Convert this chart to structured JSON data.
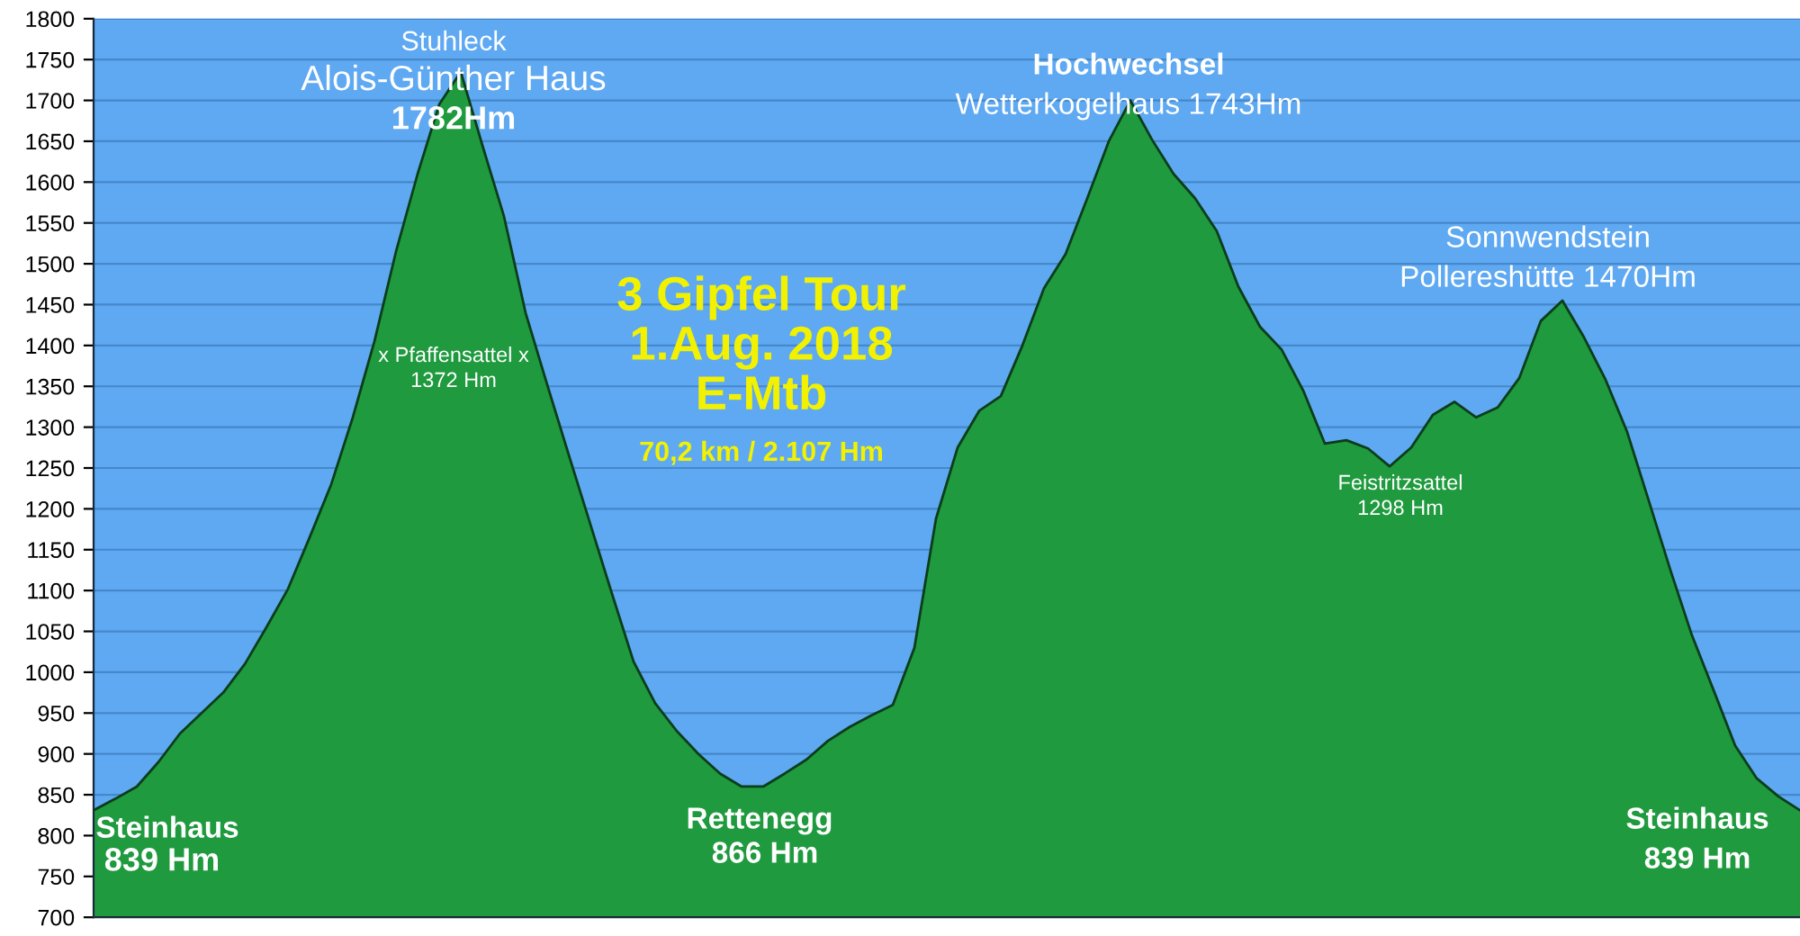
{
  "chart_data": {
    "type": "area",
    "title": "3 Gipfel Tour\n1.Aug. 2018\nE-Mtb",
    "subtitle": "70,2 km / 2.107 Hm",
    "categories": [
      null,
      null,
      null,
      null,
      null,
      null,
      null,
      null,
      null,
      null,
      null,
      null,
      null,
      null,
      null,
      null,
      null,
      null,
      null,
      null,
      null,
      null,
      null,
      null,
      null,
      null,
      null,
      null,
      null,
      null,
      null,
      null,
      null,
      null,
      null,
      null,
      null,
      null,
      null,
      null,
      null,
      null,
      null,
      null,
      null,
      null,
      null,
      null,
      null,
      null,
      null,
      null,
      null,
      null,
      null,
      null,
      null,
      null,
      null,
      null,
      null,
      null,
      null,
      null,
      null,
      null,
      null,
      null,
      null,
      null,
      null,
      null,
      null,
      null,
      null,
      null,
      null,
      null,
      null,
      null
    ],
    "series": [
      {
        "color": "#1f9a3e",
        "values": [
          831,
          845,
          860,
          890,
          925,
          950,
          975,
          1010,
          1055,
          1102,
          1165,
          1230,
          1312,
          1405,
          1515,
          1610,
          1695,
          1735,
          1645,
          1558,
          1440,
          1352,
          1266,
          1181,
          1096,
          1013,
          962,
          928,
          900,
          876,
          860,
          860,
          876,
          893,
          916,
          933,
          947,
          960,
          1030,
          1188,
          1275,
          1320,
          1338,
          1400,
          1470,
          1512,
          1580,
          1650,
          1700,
          1652,
          1610,
          1580,
          1540,
          1472,
          1423,
          1395,
          1345,
          1280,
          1284,
          1274,
          1252,
          1275,
          1315,
          1331,
          1312,
          1324,
          1360,
          1430,
          1455,
          1410,
          1358,
          1294,
          1210,
          1125,
          1045,
          978,
          910,
          870,
          848,
          831
        ]
      }
    ],
    "ylim": [
      700,
      1800
    ],
    "yticks": [
      700,
      750,
      800,
      850,
      900,
      950,
      1000,
      1050,
      1100,
      1150,
      1200,
      1250,
      1300,
      1350,
      1400,
      1450,
      1500,
      1550,
      1600,
      1650,
      1700,
      1750,
      1800
    ],
    "tick_labels": "y",
    "grid": "y",
    "annotations": [
      "Stuhleck",
      "Alois-Günther Haus",
      "1782Hm",
      "x Pfaffensattel x",
      "1372 Hm",
      "Steinhaus",
      "839 Hm",
      "Rettenegg",
      "866 Hm",
      "Hochwechsel",
      "Wetterkogelhaus 1743Hm",
      "Sonnwendstein",
      "Pollereshütte 1470Hm",
      "Feistritzsattel",
      "1298 Hm",
      "Steinhaus",
      "839 Hm"
    ]
  }
}
